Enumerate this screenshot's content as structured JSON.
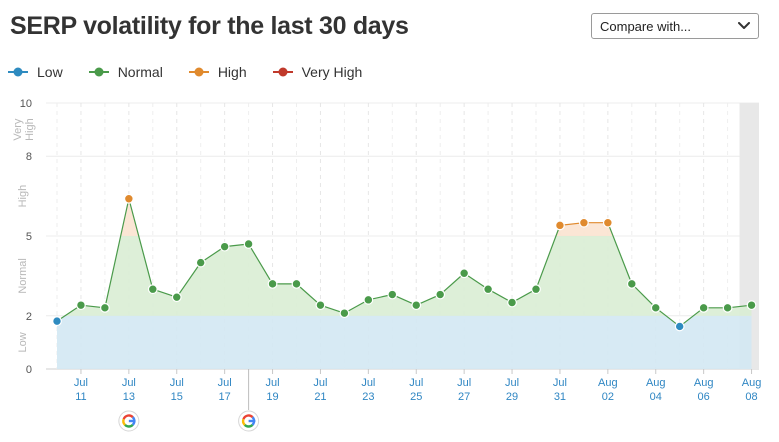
{
  "title": "SERP volatility for the last 30 days",
  "compare": {
    "label": "Compare with...",
    "icon": "chevron-down-icon"
  },
  "legend": [
    {
      "label": "Low",
      "color": "#2e8bc0"
    },
    {
      "label": "Normal",
      "color": "#4a9a4a"
    },
    {
      "label": "High",
      "color": "#e08a2e"
    },
    {
      "label": "Very High",
      "color": "#c0392b"
    }
  ],
  "chart_data": {
    "type": "line",
    "y_ticks": [
      0,
      2,
      5,
      8,
      10
    ],
    "ylim": [
      0,
      10
    ],
    "bands": [
      {
        "label": "Low",
        "from": 0,
        "to": 2,
        "fill": "#d3e8f3"
      },
      {
        "label": "Normal",
        "from": 2,
        "to": 5,
        "fill": "#d9edd4"
      },
      {
        "label": "High",
        "from": 5,
        "to": 8,
        "fill": "#fbe3d0"
      },
      {
        "label": "Very High",
        "from": 8,
        "to": 10,
        "fill": "#f6d5d2"
      }
    ],
    "x_labels": [
      {
        "month": "Jul",
        "day": "11"
      },
      {
        "month": "Jul",
        "day": "13"
      },
      {
        "month": "Jul",
        "day": "15"
      },
      {
        "month": "Jul",
        "day": "17"
      },
      {
        "month": "Jul",
        "day": "19"
      },
      {
        "month": "Jul",
        "day": "21"
      },
      {
        "month": "Jul",
        "day": "23"
      },
      {
        "month": "Jul",
        "day": "25"
      },
      {
        "month": "Jul",
        "day": "27"
      },
      {
        "month": "Jul",
        "day": "29"
      },
      {
        "month": "Jul",
        "day": "31"
      },
      {
        "month": "Aug",
        "day": "02"
      },
      {
        "month": "Aug",
        "day": "04"
      },
      {
        "month": "Aug",
        "day": "06"
      },
      {
        "month": "Aug",
        "day": "08"
      }
    ],
    "x": [
      "Jul 10",
      "Jul 11",
      "Jul 12",
      "Jul 13",
      "Jul 14",
      "Jul 15",
      "Jul 16",
      "Jul 17",
      "Jul 18",
      "Jul 19",
      "Jul 20",
      "Jul 21",
      "Jul 22",
      "Jul 23",
      "Jul 24",
      "Jul 25",
      "Jul 26",
      "Jul 27",
      "Jul 28",
      "Jul 29",
      "Jul 30",
      "Jul 31",
      "Aug 01",
      "Aug 02",
      "Aug 03",
      "Aug 04",
      "Aug 05",
      "Aug 06",
      "Aug 07",
      "Aug 08"
    ],
    "values": [
      1.8,
      2.4,
      2.3,
      6.4,
      3.0,
      2.7,
      4.0,
      4.6,
      4.7,
      3.2,
      3.2,
      2.4,
      2.1,
      2.6,
      2.8,
      2.4,
      2.8,
      3.6,
      3.0,
      2.5,
      3.0,
      5.4,
      5.5,
      5.5,
      3.2,
      2.3,
      1.6,
      2.3,
      2.3,
      2.4
    ],
    "google_updates": [
      "Jul 13",
      "Jul 18"
    ]
  }
}
